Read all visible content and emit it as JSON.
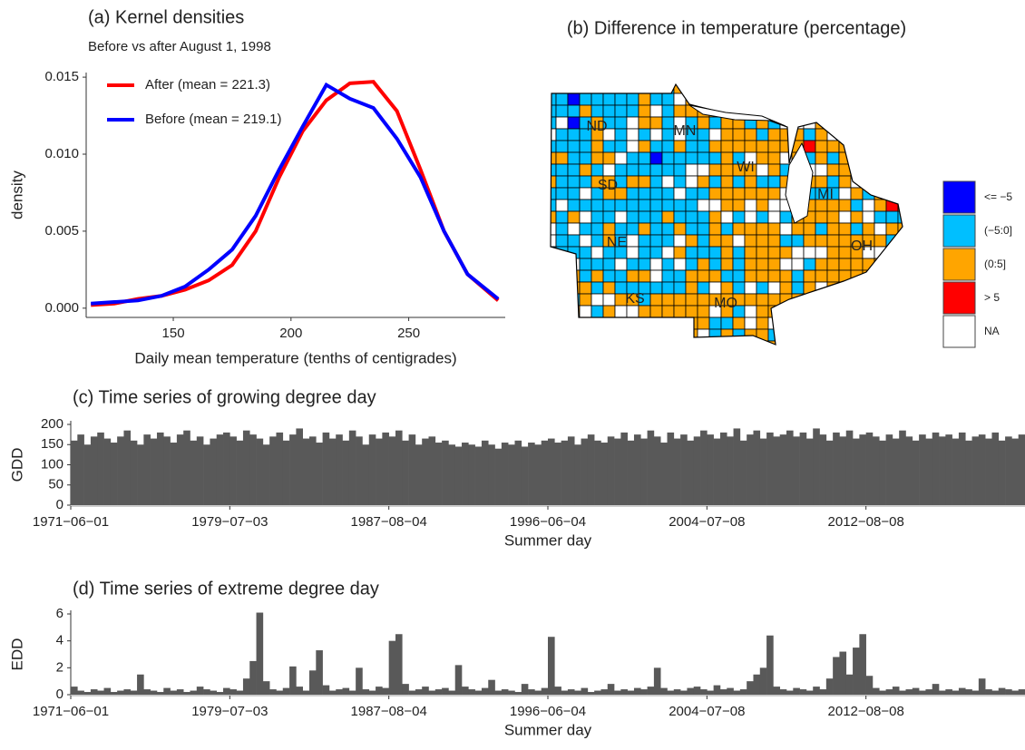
{
  "chart_data": [
    {
      "type": "line",
      "title": "(a) Kernel densities",
      "subtitle": "Before vs after August 1, 1998",
      "xlabel": "Daily mean temperature (tenths of centigrades)",
      "ylabel": "density",
      "x": [
        115,
        125,
        135,
        145,
        155,
        165,
        175,
        185,
        195,
        205,
        215,
        225,
        235,
        245,
        255,
        265,
        275,
        288
      ],
      "series": [
        {
          "name": "After (mean = 221.3)",
          "color": "#ff0000",
          "values": [
            0.0002,
            0.0003,
            0.0006,
            0.0008,
            0.0012,
            0.0018,
            0.0028,
            0.005,
            0.0085,
            0.0115,
            0.0135,
            0.0146,
            0.0147,
            0.0128,
            0.009,
            0.005,
            0.0022,
            0.0005
          ]
        },
        {
          "name": "Before (mean = 219.1)",
          "color": "#0000ff",
          "values": [
            0.0003,
            0.0004,
            0.0005,
            0.0008,
            0.0014,
            0.0025,
            0.0038,
            0.006,
            0.009,
            0.0118,
            0.0145,
            0.0136,
            0.013,
            0.011,
            0.0085,
            0.005,
            0.0022,
            0.0006
          ]
        }
      ],
      "xlim": [
        113,
        291
      ],
      "xticks": [
        150,
        200,
        250
      ],
      "ylim": [
        -0.0006,
        0.0153
      ],
      "yticks": [
        {
          "value": 0,
          "label": "0.000"
        },
        {
          "value": 0.005,
          "label": "0.005"
        },
        {
          "value": 0.01,
          "label": "0.010"
        },
        {
          "value": 0.015,
          "label": "0.015"
        }
      ]
    },
    {
      "type": "map",
      "title": "(b) Difference in temperature (percentage)",
      "states": [
        "ND",
        "MN",
        "SD",
        "WI",
        "NE",
        "MI",
        "KS",
        "MO",
        "OH"
      ],
      "legend": [
        {
          "name": "<= −5",
          "color": "#0000ff"
        },
        {
          "name": "(−5:0]",
          "color": "#00bfff"
        },
        {
          "name": "(0:5]",
          "color": "#ffa500"
        },
        {
          "name": "> 5",
          "color": "#ff0000"
        },
        {
          "name": "NA",
          "color": "#ffffff"
        }
      ]
    },
    {
      "type": "bar",
      "title": "(c) Time series of growing degree day",
      "xlabel": "Summer day",
      "ylabel": "GDD",
      "color": "#595959",
      "categories": [
        "1971−06−01",
        null,
        null,
        null,
        null,
        null,
        null,
        null,
        null,
        null,
        null,
        null,
        null,
        null,
        null,
        null,
        null,
        null,
        null,
        null,
        null,
        null,
        null,
        null,
        "1979−07−03",
        null,
        null,
        null,
        null,
        null,
        null,
        null,
        null,
        null,
        null,
        null,
        null,
        null,
        null,
        null,
        null,
        null,
        null,
        null,
        null,
        null,
        null,
        null,
        "1987−08−04",
        null,
        null,
        null,
        null,
        null,
        null,
        null,
        null,
        null,
        null,
        null,
        null,
        null,
        null,
        null,
        null,
        null,
        null,
        null,
        null,
        null,
        null,
        null,
        "1996−06−04",
        null,
        null,
        null,
        null,
        null,
        null,
        null,
        null,
        null,
        null,
        null,
        null,
        null,
        null,
        null,
        null,
        null,
        null,
        null,
        null,
        null,
        null,
        null,
        "2004−07−08",
        null,
        null,
        null,
        null,
        null,
        null,
        null,
        null,
        null,
        null,
        null,
        null,
        null,
        null,
        null,
        null,
        null,
        null,
        null,
        null,
        null,
        null,
        null,
        "2012−08−08",
        null,
        null,
        null,
        null,
        null,
        null,
        null,
        null,
        null,
        null,
        null,
        null,
        null,
        null,
        null,
        null,
        null,
        null,
        null,
        null,
        null,
        null,
        null
      ],
      "values": [
        160,
        175,
        150,
        170,
        180,
        165,
        155,
        170,
        185,
        160,
        150,
        175,
        165,
        180,
        170,
        155,
        175,
        185,
        160,
        170,
        150,
        165,
        175,
        180,
        170,
        160,
        185,
        175,
        165,
        150,
        170,
        180,
        160,
        175,
        190,
        165,
        170,
        155,
        180,
        165,
        175,
        160,
        185,
        170,
        150,
        175,
        165,
        180,
        170,
        185,
        160,
        175,
        150,
        165,
        170,
        155,
        160,
        150,
        145,
        155,
        150,
        145,
        160,
        150,
        140,
        155,
        150,
        160,
        145,
        155,
        150,
        160,
        165,
        155,
        160,
        170,
        150,
        165,
        175,
        160,
        155,
        170,
        165,
        180,
        160,
        175,
        165,
        185,
        170,
        155,
        180,
        165,
        175,
        160,
        170,
        185,
        175,
        165,
        180,
        170,
        190,
        160,
        175,
        185,
        165,
        180,
        170,
        175,
        185,
        170,
        180,
        165,
        190,
        175,
        160,
        180,
        170,
        185,
        165,
        175,
        180,
        170,
        160,
        175,
        165,
        185,
        170,
        160,
        175,
        165,
        180,
        170,
        175,
        165,
        180,
        160,
        170,
        175,
        165,
        180,
        160,
        170,
        165,
        175
      ],
      "ylim": [
        0,
        200
      ],
      "yticks": [
        0,
        50,
        100,
        150,
        200
      ]
    },
    {
      "type": "bar",
      "title": "(d) Time series of extreme degree day",
      "xlabel": "Summer day",
      "ylabel": "EDD",
      "color": "#595959",
      "categories": [
        "1971−06−01",
        null,
        null,
        null,
        null,
        null,
        null,
        null,
        null,
        null,
        null,
        null,
        null,
        null,
        null,
        null,
        null,
        null,
        null,
        null,
        null,
        null,
        null,
        null,
        "1979−07−03",
        null,
        null,
        null,
        null,
        null,
        null,
        null,
        null,
        null,
        null,
        null,
        null,
        null,
        null,
        null,
        null,
        null,
        null,
        null,
        null,
        null,
        null,
        null,
        "1987−08−04",
        null,
        null,
        null,
        null,
        null,
        null,
        null,
        null,
        null,
        null,
        null,
        null,
        null,
        null,
        null,
        null,
        null,
        null,
        null,
        null,
        null,
        null,
        null,
        "1996−06−04",
        null,
        null,
        null,
        null,
        null,
        null,
        null,
        null,
        null,
        null,
        null,
        null,
        null,
        null,
        null,
        null,
        null,
        null,
        null,
        null,
        null,
        null,
        null,
        "2004−07−08",
        null,
        null,
        null,
        null,
        null,
        null,
        null,
        null,
        null,
        null,
        null,
        null,
        null,
        null,
        null,
        null,
        null,
        null,
        null,
        null,
        null,
        null,
        null,
        "2012−08−08",
        null,
        null,
        null,
        null,
        null,
        null,
        null,
        null,
        null,
        null,
        null,
        null,
        null,
        null,
        null,
        null,
        null,
        null,
        null,
        null,
        null,
        null,
        null
      ],
      "values": [
        0.6,
        0.3,
        0.2,
        0.4,
        0.3,
        0.5,
        0.2,
        0.3,
        0.4,
        0.3,
        1.5,
        0.4,
        0.3,
        0.2,
        0.5,
        0.3,
        0.4,
        0.2,
        0.3,
        0.6,
        0.4,
        0.3,
        0.2,
        0.5,
        0.4,
        0.3,
        1.2,
        2.5,
        6.1,
        1.0,
        0.4,
        0.3,
        0.5,
        2.1,
        0.6,
        0.3,
        1.8,
        3.3,
        0.7,
        0.3,
        0.4,
        0.5,
        0.3,
        2.0,
        0.4,
        0.3,
        0.6,
        0.5,
        4.0,
        4.5,
        0.8,
        0.3,
        0.4,
        0.6,
        0.3,
        0.4,
        0.5,
        0.3,
        2.2,
        0.6,
        0.4,
        0.3,
        0.5,
        1.1,
        0.3,
        0.4,
        0.3,
        0.2,
        0.8,
        0.4,
        0.3,
        0.5,
        4.3,
        0.6,
        0.3,
        0.4,
        0.3,
        0.5,
        0.2,
        0.3,
        0.4,
        0.8,
        0.3,
        0.4,
        0.3,
        0.5,
        0.4,
        0.6,
        2.0,
        0.5,
        0.3,
        0.4,
        0.3,
        0.5,
        0.6,
        0.4,
        0.3,
        0.7,
        0.4,
        0.5,
        0.3,
        0.4,
        1.0,
        1.5,
        2.0,
        4.4,
        0.6,
        0.4,
        0.3,
        0.5,
        0.4,
        0.3,
        0.6,
        0.4,
        1.2,
        2.8,
        3.2,
        1.5,
        3.5,
        4.5,
        1.4,
        0.5,
        0.3,
        0.4,
        0.6,
        0.3,
        0.4,
        0.5,
        0.3,
        0.4,
        0.8,
        0.3,
        0.4,
        0.3,
        0.5,
        0.4,
        0.3,
        1.2,
        0.4,
        0.3,
        0.5,
        0.4,
        0.3,
        0.4
      ],
      "ylim": [
        0,
        6
      ],
      "yticks": [
        0,
        2,
        4,
        6
      ]
    }
  ]
}
